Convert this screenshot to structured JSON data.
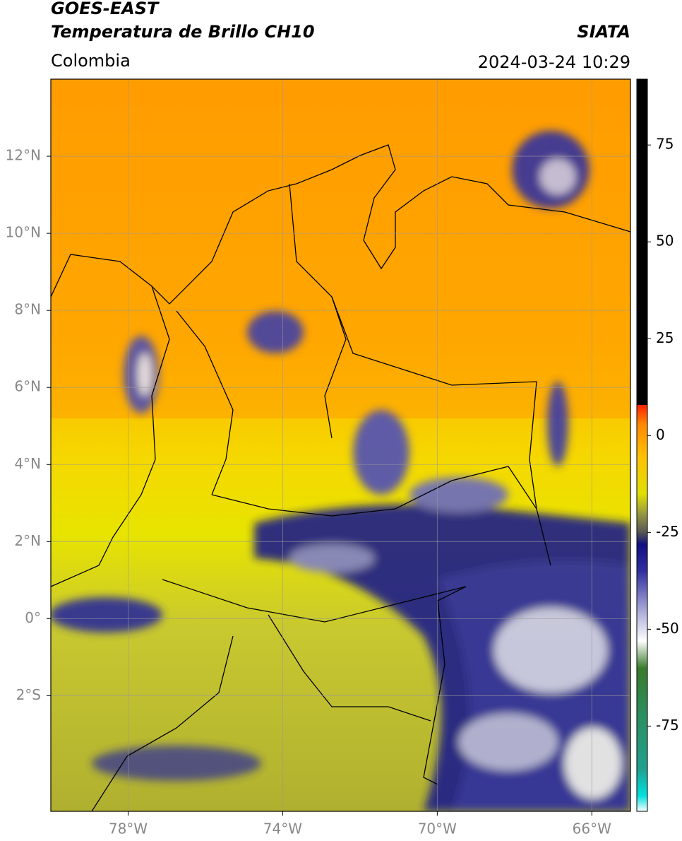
{
  "header": {
    "title": "GOES-EAST",
    "subtitle": "Temperatura de Brillo CH10",
    "source": "SIATA",
    "region": "Colombia",
    "datetime": "2024-03-24 10:29"
  },
  "map": {
    "lonlim": [
      -80,
      -65
    ],
    "latlim": [
      -5,
      14
    ],
    "xticks": [
      {
        "value": -78,
        "label": "78°W"
      },
      {
        "value": -74,
        "label": "74°W"
      },
      {
        "value": -70,
        "label": "70°W"
      },
      {
        "value": -66,
        "label": "66°W"
      }
    ],
    "yticks": [
      {
        "value": 12,
        "label": "12°N"
      },
      {
        "value": 10,
        "label": "10°N"
      },
      {
        "value": 8,
        "label": "8°N"
      },
      {
        "value": 6,
        "label": "6°N"
      },
      {
        "value": 4,
        "label": "4°N"
      },
      {
        "value": 2,
        "label": "2°N"
      },
      {
        "value": 0,
        "label": "0°"
      },
      {
        "value": -2,
        "label": "2°S"
      }
    ],
    "grid": true
  },
  "colorbar": {
    "lim": [
      -97,
      92
    ],
    "ticks": [
      75,
      50,
      25,
      0,
      -25,
      -50,
      -75
    ],
    "stops": [
      {
        "value": -97,
        "color": "#ffffff"
      },
      {
        "value": -93,
        "color": "#00e0e0"
      },
      {
        "value": -86,
        "color": "#20a090"
      },
      {
        "value": -70,
        "color": "#2e8b57"
      },
      {
        "value": -60,
        "color": "#3a7a2a"
      },
      {
        "value": -53,
        "color": "#ffffff"
      },
      {
        "value": -45,
        "color": "#a8a8d8"
      },
      {
        "value": -35,
        "color": "#3030a0"
      },
      {
        "value": -28,
        "color": "#101080"
      },
      {
        "value": -25,
        "color": "#555555"
      },
      {
        "value": -20,
        "color": "#9a9a40"
      },
      {
        "value": -15,
        "color": "#e0e000"
      },
      {
        "value": -5,
        "color": "#ffc000"
      },
      {
        "value": 3,
        "color": "#ff8800"
      },
      {
        "value": 8,
        "color": "#ff2000"
      },
      {
        "value": 8,
        "color": "#000000"
      },
      {
        "value": 92,
        "color": "#000000"
      }
    ]
  }
}
